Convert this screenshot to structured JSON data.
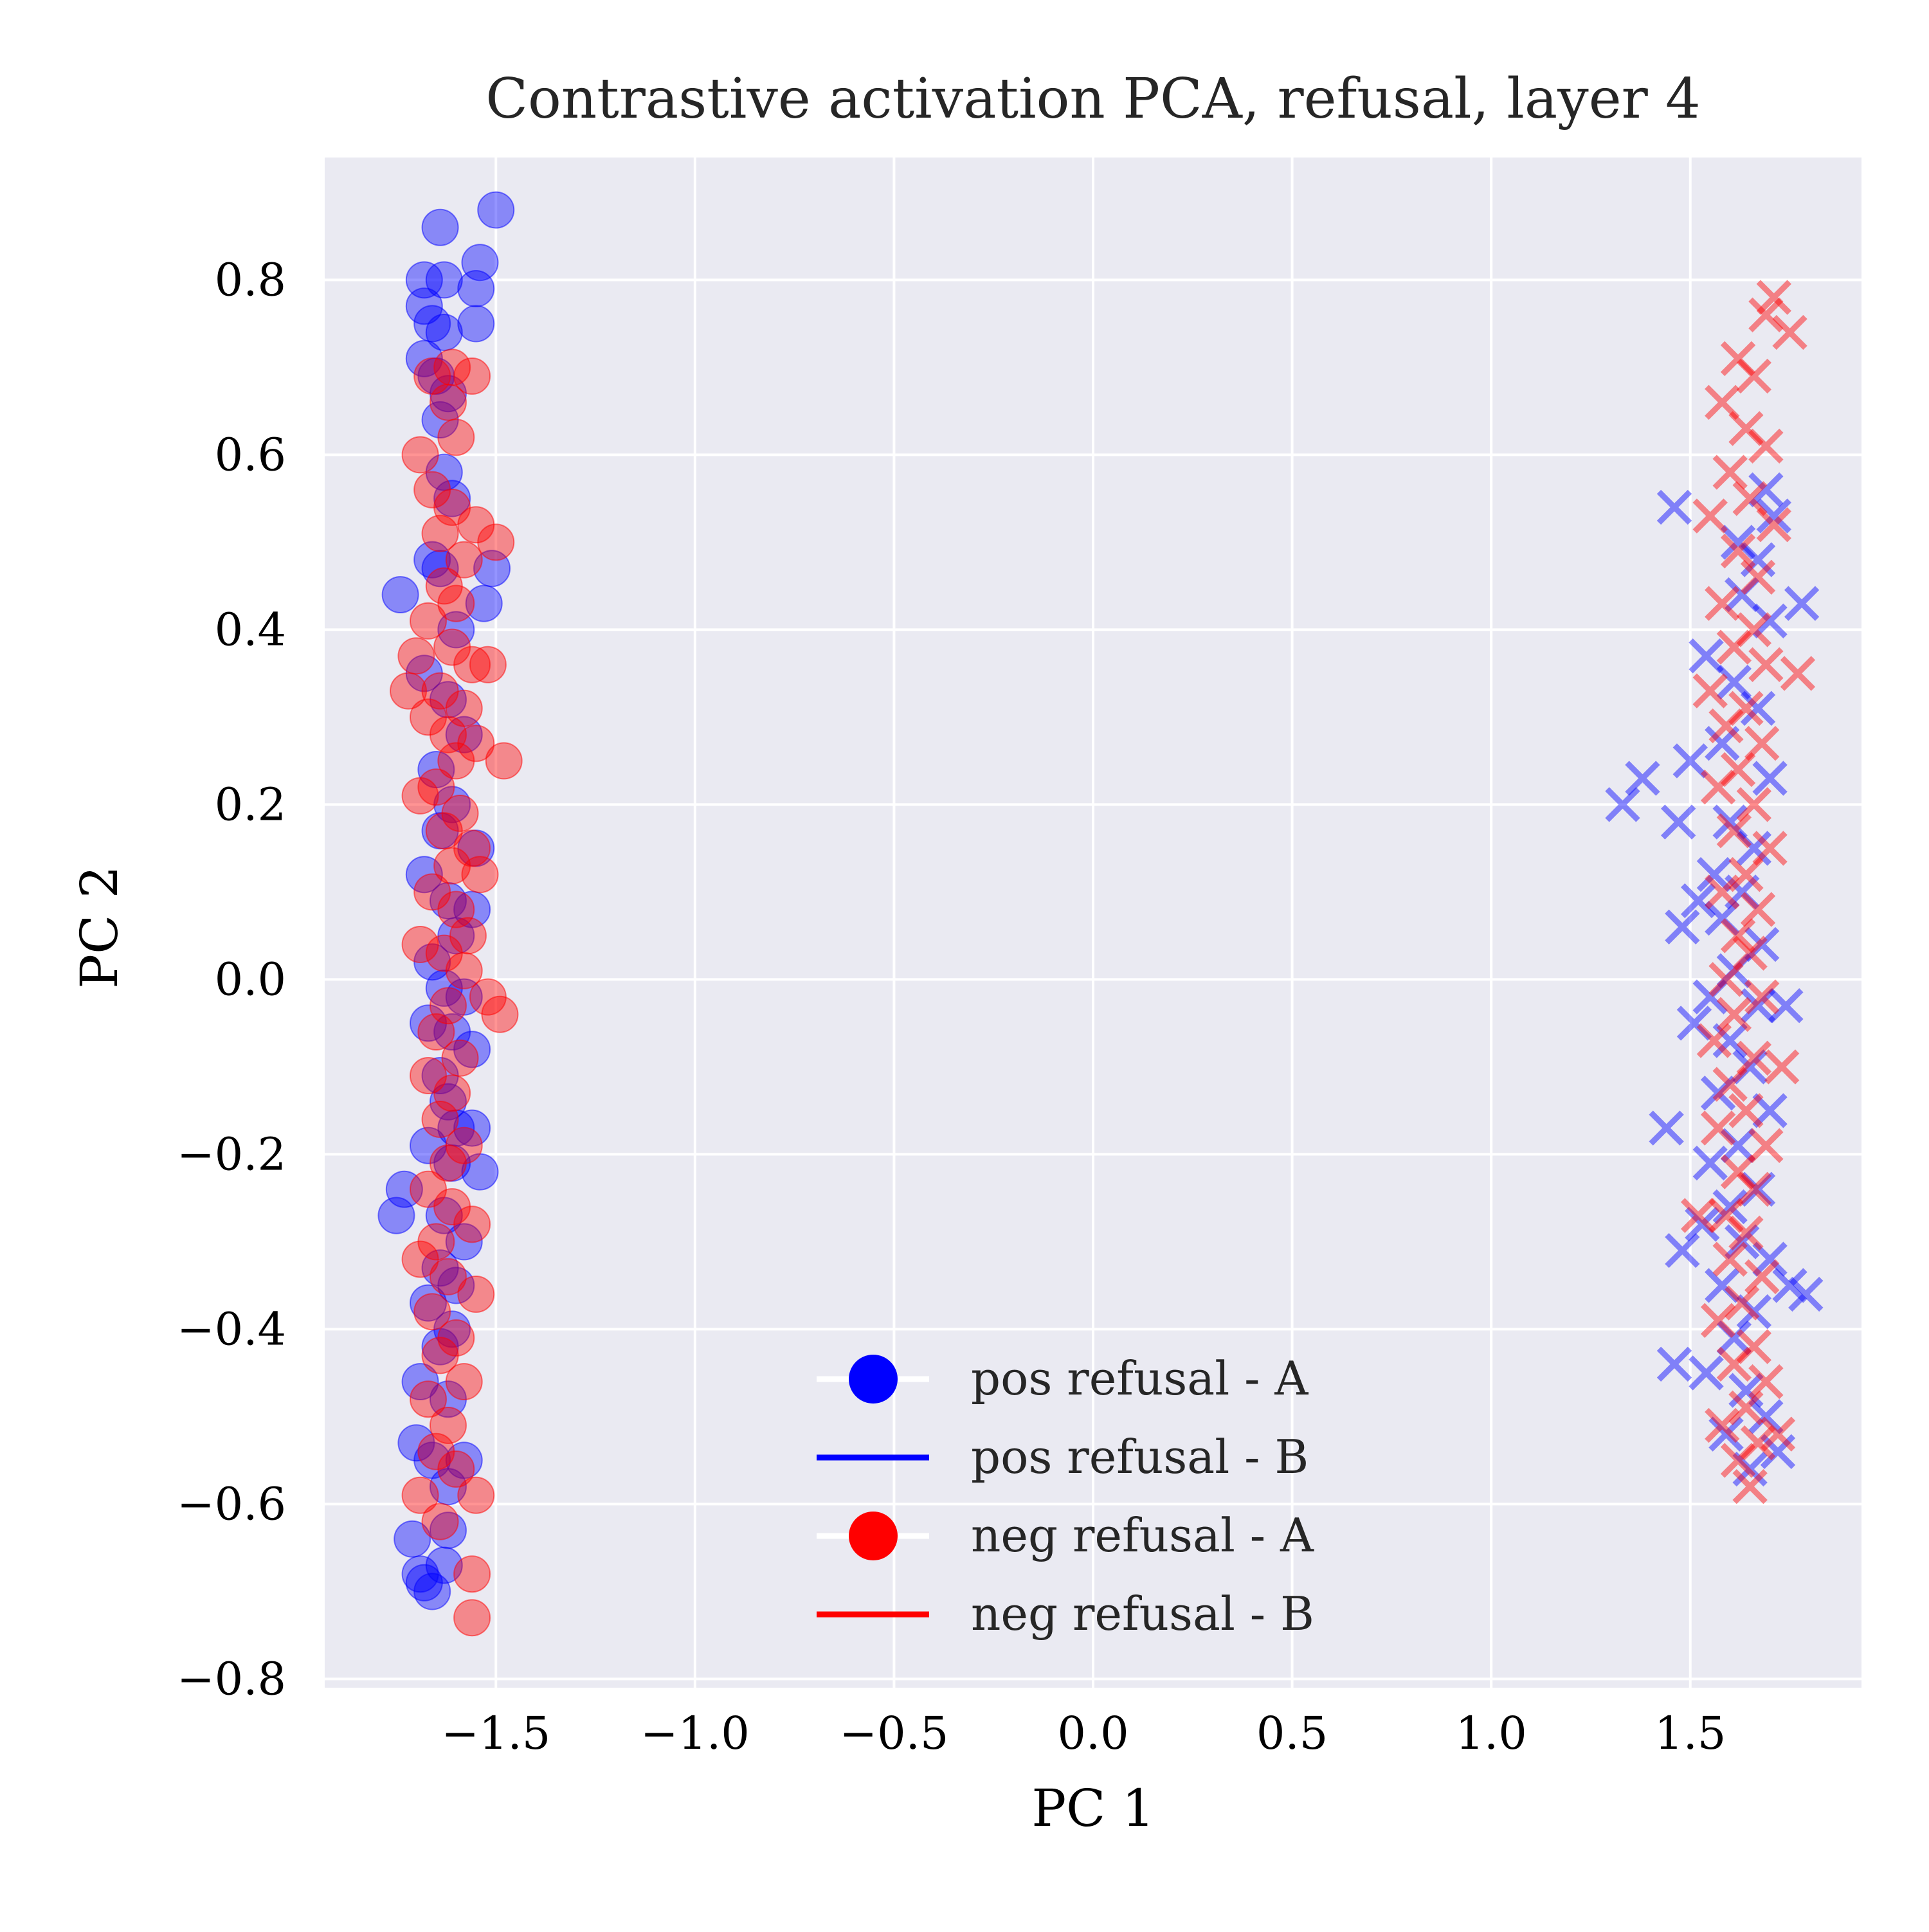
{
  "chart_data": {
    "type": "scatter",
    "title": "Contrastive activation PCA, refusal, layer 4",
    "xlabel": "PC 1",
    "ylabel": "PC 2",
    "xlim": [
      -1.93,
      1.93
    ],
    "ylim": [
      -0.81,
      0.94
    ],
    "xticks": [
      -1.5,
      -1.0,
      -0.5,
      0.0,
      0.5,
      1.0,
      1.5
    ],
    "xtick_labels": [
      "−1.5",
      "−1.0",
      "−0.5",
      "0.0",
      "0.5",
      "1.0",
      "1.5"
    ],
    "yticks": [
      -0.8,
      -0.6,
      -0.4,
      -0.2,
      0.0,
      0.2,
      0.4,
      0.6,
      0.8
    ],
    "ytick_labels": [
      "−0.8",
      "−0.6",
      "−0.4",
      "−0.2",
      "0.0",
      "0.2",
      "0.4",
      "0.6",
      "0.8"
    ],
    "grid": true,
    "legend_position": "lower-center",
    "colors": {
      "pos": "#0000ff",
      "neg": "#ff0000",
      "plot_bg": "#eaeaf2",
      "grid": "#ffffff"
    },
    "series": [
      {
        "name": "pos refusal - A",
        "marker": "circle",
        "color": "#0000ff",
        "points": [
          [
            -1.64,
            0.86
          ],
          [
            -1.5,
            0.88
          ],
          [
            -1.68,
            0.8
          ],
          [
            -1.63,
            0.8
          ],
          [
            -1.54,
            0.82
          ],
          [
            -1.55,
            0.79
          ],
          [
            -1.68,
            0.77
          ],
          [
            -1.66,
            0.75
          ],
          [
            -1.55,
            0.75
          ],
          [
            -1.63,
            0.74
          ],
          [
            -1.68,
            0.71
          ],
          [
            -1.65,
            0.69
          ],
          [
            -1.62,
            0.67
          ],
          [
            -1.64,
            0.64
          ],
          [
            -1.63,
            0.58
          ],
          [
            -1.61,
            0.55
          ],
          [
            -1.74,
            0.44
          ],
          [
            -1.64,
            0.47
          ],
          [
            -1.66,
            0.48
          ],
          [
            -1.51,
            0.47
          ],
          [
            -1.53,
            0.43
          ],
          [
            -1.6,
            0.4
          ],
          [
            -1.68,
            0.35
          ],
          [
            -1.62,
            0.32
          ],
          [
            -1.58,
            0.28
          ],
          [
            -1.65,
            0.24
          ],
          [
            -1.61,
            0.2
          ],
          [
            -1.64,
            0.17
          ],
          [
            -1.55,
            0.15
          ],
          [
            -1.68,
            0.12
          ],
          [
            -1.62,
            0.09
          ],
          [
            -1.56,
            0.08
          ],
          [
            -1.6,
            0.05
          ],
          [
            -1.66,
            0.02
          ],
          [
            -1.63,
            -0.01
          ],
          [
            -1.58,
            -0.02
          ],
          [
            -1.67,
            -0.05
          ],
          [
            -1.61,
            -0.06
          ],
          [
            -1.56,
            -0.08
          ],
          [
            -1.64,
            -0.11
          ],
          [
            -1.62,
            -0.14
          ],
          [
            -1.6,
            -0.17
          ],
          [
            -1.56,
            -0.17
          ],
          [
            -1.67,
            -0.19
          ],
          [
            -1.61,
            -0.21
          ],
          [
            -1.54,
            -0.22
          ],
          [
            -1.73,
            -0.24
          ],
          [
            -1.75,
            -0.27
          ],
          [
            -1.63,
            -0.27
          ],
          [
            -1.58,
            -0.3
          ],
          [
            -1.64,
            -0.33
          ],
          [
            -1.6,
            -0.35
          ],
          [
            -1.67,
            -0.37
          ],
          [
            -1.61,
            -0.4
          ],
          [
            -1.64,
            -0.42
          ],
          [
            -1.69,
            -0.46
          ],
          [
            -1.62,
            -0.48
          ],
          [
            -1.7,
            -0.53
          ],
          [
            -1.66,
            -0.55
          ],
          [
            -1.58,
            -0.55
          ],
          [
            -1.62,
            -0.58
          ],
          [
            -1.71,
            -0.64
          ],
          [
            -1.62,
            -0.63
          ],
          [
            -1.69,
            -0.68
          ],
          [
            -1.63,
            -0.67
          ],
          [
            -1.66,
            -0.7
          ],
          [
            -1.68,
            -0.69
          ]
        ]
      },
      {
        "name": "pos refusal - B",
        "marker": "x",
        "color": "#0000ff",
        "points": [
          [
            1.46,
            0.54
          ],
          [
            1.71,
            0.53
          ],
          [
            1.69,
            0.56
          ],
          [
            1.67,
            0.48
          ],
          [
            1.62,
            0.5
          ],
          [
            1.78,
            0.43
          ],
          [
            1.63,
            0.44
          ],
          [
            1.7,
            0.41
          ],
          [
            1.54,
            0.37
          ],
          [
            1.61,
            0.34
          ],
          [
            1.67,
            0.31
          ],
          [
            1.58,
            0.27
          ],
          [
            1.5,
            0.25
          ],
          [
            1.7,
            0.23
          ],
          [
            1.38,
            0.23
          ],
          [
            1.33,
            0.2
          ],
          [
            1.47,
            0.18
          ],
          [
            1.6,
            0.18
          ],
          [
            1.66,
            0.15
          ],
          [
            1.56,
            0.12
          ],
          [
            1.52,
            0.09
          ],
          [
            1.63,
            0.1
          ],
          [
            1.48,
            0.06
          ],
          [
            1.58,
            0.07
          ],
          [
            1.68,
            0.04
          ],
          [
            1.61,
            0.01
          ],
          [
            1.55,
            -0.02
          ],
          [
            1.67,
            -0.03
          ],
          [
            1.74,
            -0.03
          ],
          [
            1.51,
            -0.05
          ],
          [
            1.6,
            -0.07
          ],
          [
            1.65,
            -0.1
          ],
          [
            1.57,
            -0.13
          ],
          [
            1.7,
            -0.15
          ],
          [
            1.44,
            -0.17
          ],
          [
            1.62,
            -0.19
          ],
          [
            1.55,
            -0.21
          ],
          [
            1.67,
            -0.24
          ],
          [
            1.6,
            -0.26
          ],
          [
            1.53,
            -0.28
          ],
          [
            1.63,
            -0.3
          ],
          [
            1.48,
            -0.31
          ],
          [
            1.7,
            -0.32
          ],
          [
            1.75,
            -0.35
          ],
          [
            1.79,
            -0.36
          ],
          [
            1.58,
            -0.35
          ],
          [
            1.66,
            -0.38
          ],
          [
            1.61,
            -0.41
          ],
          [
            1.46,
            -0.44
          ],
          [
            1.54,
            -0.45
          ],
          [
            1.64,
            -0.47
          ],
          [
            1.69,
            -0.5
          ],
          [
            1.72,
            -0.54
          ],
          [
            1.59,
            -0.52
          ],
          [
            1.65,
            -0.56
          ]
        ]
      },
      {
        "name": "neg refusal - A",
        "marker": "circle",
        "color": "#ff0000",
        "points": [
          [
            -1.61,
            0.7
          ],
          [
            -1.56,
            0.69
          ],
          [
            -1.66,
            0.69
          ],
          [
            -1.62,
            0.66
          ],
          [
            -1.6,
            0.62
          ],
          [
            -1.69,
            0.6
          ],
          [
            -1.66,
            0.56
          ],
          [
            -1.61,
            0.54
          ],
          [
            -1.64,
            0.51
          ],
          [
            -1.55,
            0.52
          ],
          [
            -1.5,
            0.5
          ],
          [
            -1.58,
            0.48
          ],
          [
            -1.63,
            0.45
          ],
          [
            -1.6,
            0.43
          ],
          [
            -1.67,
            0.41
          ],
          [
            -1.61,
            0.38
          ],
          [
            -1.56,
            0.36
          ],
          [
            -1.7,
            0.37
          ],
          [
            -1.52,
            0.36
          ],
          [
            -1.64,
            0.33
          ],
          [
            -1.72,
            0.33
          ],
          [
            -1.58,
            0.31
          ],
          [
            -1.67,
            0.3
          ],
          [
            -1.62,
            0.28
          ],
          [
            -1.55,
            0.27
          ],
          [
            -1.48,
            0.25
          ],
          [
            -1.6,
            0.25
          ],
          [
            -1.65,
            0.22
          ],
          [
            -1.69,
            0.21
          ],
          [
            -1.59,
            0.19
          ],
          [
            -1.63,
            0.17
          ],
          [
            -1.56,
            0.15
          ],
          [
            -1.61,
            0.13
          ],
          [
            -1.54,
            0.12
          ],
          [
            -1.66,
            0.1
          ],
          [
            -1.6,
            0.08
          ],
          [
            -1.57,
            0.05
          ],
          [
            -1.63,
            0.03
          ],
          [
            -1.69,
            0.04
          ],
          [
            -1.58,
            0.01
          ],
          [
            -1.52,
            -0.02
          ],
          [
            -1.49,
            -0.04
          ],
          [
            -1.62,
            -0.03
          ],
          [
            -1.65,
            -0.06
          ],
          [
            -1.59,
            -0.09
          ],
          [
            -1.67,
            -0.11
          ],
          [
            -1.61,
            -0.13
          ],
          [
            -1.64,
            -0.16
          ],
          [
            -1.58,
            -0.19
          ],
          [
            -1.62,
            -0.21
          ],
          [
            -1.67,
            -0.24
          ],
          [
            -1.61,
            -0.26
          ],
          [
            -1.56,
            -0.28
          ],
          [
            -1.65,
            -0.3
          ],
          [
            -1.69,
            -0.32
          ],
          [
            -1.62,
            -0.34
          ],
          [
            -1.55,
            -0.36
          ],
          [
            -1.66,
            -0.38
          ],
          [
            -1.6,
            -0.41
          ],
          [
            -1.64,
            -0.43
          ],
          [
            -1.58,
            -0.46
          ],
          [
            -1.67,
            -0.48
          ],
          [
            -1.62,
            -0.51
          ],
          [
            -1.65,
            -0.54
          ],
          [
            -1.6,
            -0.56
          ],
          [
            -1.69,
            -0.59
          ],
          [
            -1.55,
            -0.59
          ],
          [
            -1.64,
            -0.62
          ],
          [
            -1.56,
            -0.68
          ],
          [
            -1.56,
            -0.73
          ]
        ]
      },
      {
        "name": "neg refusal - B",
        "marker": "x",
        "color": "#ff0000",
        "points": [
          [
            1.71,
            0.78
          ],
          [
            1.69,
            0.76
          ],
          [
            1.75,
            0.74
          ],
          [
            1.62,
            0.71
          ],
          [
            1.66,
            0.69
          ],
          [
            1.58,
            0.66
          ],
          [
            1.64,
            0.63
          ],
          [
            1.69,
            0.61
          ],
          [
            1.6,
            0.58
          ],
          [
            1.65,
            0.55
          ],
          [
            1.55,
            0.53
          ],
          [
            1.71,
            0.52
          ],
          [
            1.62,
            0.49
          ],
          [
            1.67,
            0.46
          ],
          [
            1.58,
            0.43
          ],
          [
            1.66,
            0.4
          ],
          [
            1.61,
            0.38
          ],
          [
            1.69,
            0.36
          ],
          [
            1.77,
            0.35
          ],
          [
            1.55,
            0.33
          ],
          [
            1.64,
            0.31
          ],
          [
            1.59,
            0.29
          ],
          [
            1.68,
            0.27
          ],
          [
            1.62,
            0.24
          ],
          [
            1.57,
            0.22
          ],
          [
            1.66,
            0.2
          ],
          [
            1.61,
            0.17
          ],
          [
            1.7,
            0.15
          ],
          [
            1.64,
            0.12
          ],
          [
            1.58,
            0.1
          ],
          [
            1.67,
            0.08
          ],
          [
            1.62,
            0.05
          ],
          [
            1.65,
            0.03
          ],
          [
            1.59,
            0.0
          ],
          [
            1.68,
            -0.02
          ],
          [
            1.61,
            -0.04
          ],
          [
            1.56,
            -0.07
          ],
          [
            1.66,
            -0.09
          ],
          [
            1.73,
            -0.1
          ],
          [
            1.6,
            -0.12
          ],
          [
            1.64,
            -0.15
          ],
          [
            1.57,
            -0.17
          ],
          [
            1.69,
            -0.19
          ],
          [
            1.62,
            -0.22
          ],
          [
            1.66,
            -0.24
          ],
          [
            1.59,
            -0.27
          ],
          [
            1.52,
            -0.27
          ],
          [
            1.64,
            -0.29
          ],
          [
            1.6,
            -0.32
          ],
          [
            1.68,
            -0.34
          ],
          [
            1.63,
            -0.37
          ],
          [
            1.57,
            -0.39
          ],
          [
            1.66,
            -0.42
          ],
          [
            1.61,
            -0.44
          ],
          [
            1.69,
            -0.46
          ],
          [
            1.64,
            -0.49
          ],
          [
            1.58,
            -0.51
          ],
          [
            1.67,
            -0.53
          ],
          [
            1.72,
            -0.52
          ],
          [
            1.62,
            -0.55
          ],
          [
            1.65,
            -0.58
          ]
        ]
      }
    ]
  }
}
